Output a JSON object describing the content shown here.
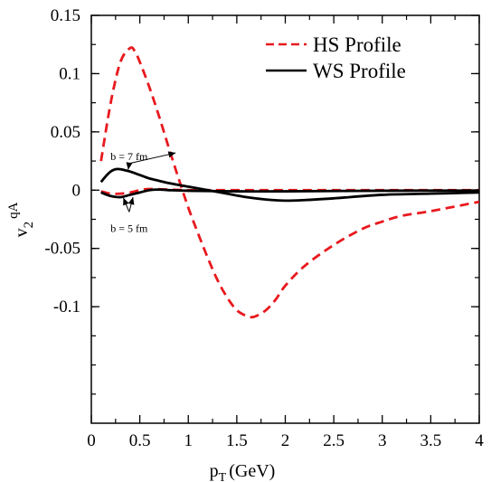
{
  "chart_data": {
    "type": "line",
    "title": "",
    "xlabel": "p",
    "xlabel_sub": "T",
    "xlabel_unit": "(GeV)",
    "ylabel": "v",
    "ylabel_sub": "2",
    "ylabel_sup": "qA",
    "xlim": [
      0,
      4
    ],
    "ylim": [
      -0.2,
      0.15
    ],
    "xticks": [
      0,
      0.5,
      1,
      1.5,
      2,
      2.5,
      3,
      3.5,
      4
    ],
    "xtick_labels": [
      "0",
      "0.5",
      "1",
      "1.5",
      "2",
      "2.5",
      "3",
      "3.5",
      "4"
    ],
    "yticks": [
      -0.1,
      -0.05,
      0,
      0.05,
      0.1,
      0.15
    ],
    "ytick_labels": [
      "-0.1",
      "-0.05",
      "0",
      "0.05",
      "0.1",
      "0.15"
    ],
    "grid": false,
    "legend_position": "top-right",
    "legend": [
      {
        "label": "HS Profile",
        "color": "#e8191e",
        "style": "dashed"
      },
      {
        "label": "WS Profile",
        "color": "#000000",
        "style": "solid"
      }
    ],
    "series": [
      {
        "name": "HS Profile",
        "group": "b = 7 fm",
        "color": "#e8191e",
        "style": "dashed",
        "x": [
          0.1,
          0.2,
          0.3,
          0.4,
          0.45,
          0.5,
          0.6,
          0.7,
          0.8,
          0.9,
          1.0,
          1.1,
          1.2,
          1.3,
          1.4,
          1.5,
          1.6,
          1.65,
          1.7,
          1.8,
          1.9,
          2.0,
          2.2,
          2.5,
          2.8,
          3.0,
          3.2,
          3.5,
          4.0
        ],
        "y": [
          0.025,
          0.075,
          0.11,
          0.122,
          0.119,
          0.11,
          0.088,
          0.063,
          0.036,
          0.01,
          -0.015,
          -0.037,
          -0.058,
          -0.077,
          -0.092,
          -0.103,
          -0.108,
          -0.109,
          -0.108,
          -0.103,
          -0.094,
          -0.082,
          -0.065,
          -0.047,
          -0.033,
          -0.027,
          -0.022,
          -0.018,
          -0.01
        ]
      },
      {
        "name": "HS Profile",
        "group": "b = 5 fm",
        "color": "#e8191e",
        "style": "dashed",
        "x": [
          0.1,
          0.2,
          0.3,
          0.4,
          0.5,
          0.6,
          0.8,
          1.0,
          1.5,
          2.0,
          3.0,
          4.0
        ],
        "y": [
          -0.001,
          -0.003,
          -0.003,
          -0.002,
          0.0,
          0.001,
          0.0005,
          0.0,
          0.0,
          0.0,
          0.0,
          0.0
        ]
      },
      {
        "name": "WS Profile",
        "group": "b = 7 fm",
        "color": "#000000",
        "style": "solid",
        "x": [
          0.1,
          0.15,
          0.2,
          0.25,
          0.3,
          0.35,
          0.4,
          0.5,
          0.6,
          0.7,
          0.8,
          1.0,
          1.2,
          1.4,
          1.6,
          1.8,
          2.0,
          2.2,
          2.5,
          3.0,
          3.5,
          4.0
        ],
        "y": [
          0.007,
          0.012,
          0.016,
          0.018,
          0.018,
          0.017,
          0.016,
          0.013,
          0.01,
          0.008,
          0.006,
          0.003,
          0.0,
          -0.003,
          -0.006,
          -0.008,
          -0.009,
          -0.0085,
          -0.007,
          -0.004,
          -0.003,
          -0.002
        ]
      },
      {
        "name": "WS Profile",
        "group": "b = 5 fm",
        "color": "#000000",
        "style": "solid",
        "x": [
          0.1,
          0.2,
          0.3,
          0.4,
          0.5,
          0.6,
          0.7,
          0.8,
          1.0,
          1.5,
          2.0,
          3.0,
          4.0
        ],
        "y": [
          -0.002,
          -0.005,
          -0.006,
          -0.004,
          -0.002,
          0.0,
          0.0005,
          0.0,
          -0.0005,
          -0.001,
          -0.001,
          -0.0005,
          -0.0003
        ]
      }
    ],
    "annotations": [
      {
        "text": "b = 7 fm",
        "x": 0.39,
        "y": 0.026,
        "arrows_to": [
          [
            0.38,
            0.0175
          ],
          [
            0.87,
            0.032
          ]
        ]
      },
      {
        "text": "b = 5 fm",
        "x": 0.39,
        "y": -0.028,
        "arrows_to": [
          [
            0.33,
            -0.0065
          ],
          [
            0.43,
            -0.006
          ]
        ]
      }
    ]
  }
}
